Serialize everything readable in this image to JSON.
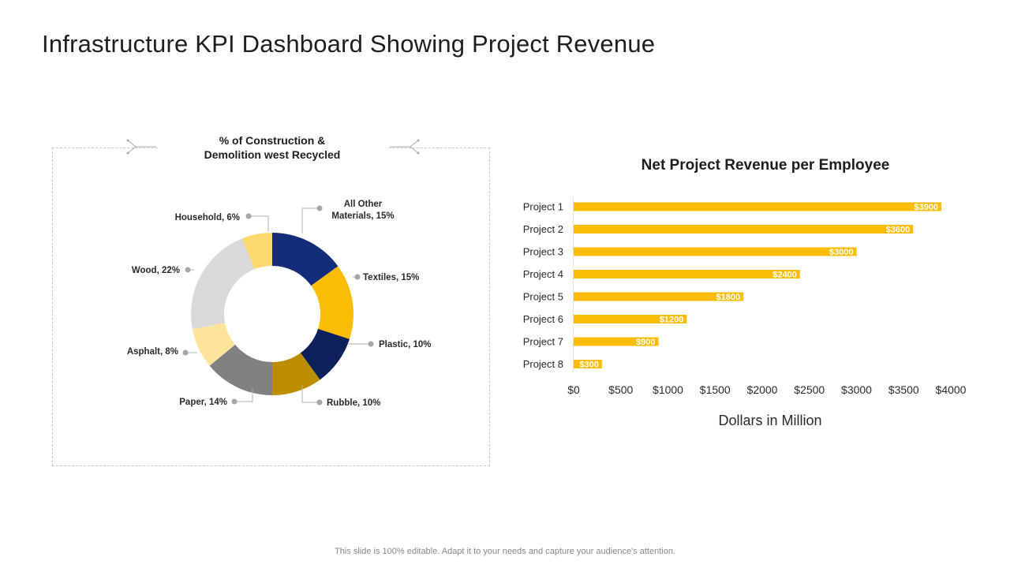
{
  "title": "Infrastructure KPI Dashboard Showing Project Revenue",
  "footer": "This slide is 100% editable. Adapt it to your needs and capture your audience's attention.",
  "chart_data": [
    {
      "type": "pie",
      "title": "% of Construction & Demolition west Recycled",
      "title_lines": [
        "% of Construction &",
        "Demolition west Recycled"
      ],
      "slices": [
        {
          "label": "All Other Materials, 15%",
          "label_lines": [
            "All Other",
            "Materials, 15%"
          ],
          "value": 15,
          "color": "#132d7a"
        },
        {
          "label": "Textiles, 15%",
          "label_lines": [
            "Textiles, 15%"
          ],
          "value": 15,
          "color": "#fbbc05"
        },
        {
          "label": "Plastic, 10%",
          "label_lines": [
            "Plastic, 10%"
          ],
          "value": 10,
          "color": "#0e2059"
        },
        {
          "label": "Rubble, 10%",
          "label_lines": [
            "Rubble, 10%"
          ],
          "value": 10,
          "color": "#bd8d00"
        },
        {
          "label": "Paper, 14%",
          "label_lines": [
            "Paper, 14%"
          ],
          "value": 14,
          "color": "#808080"
        },
        {
          "label": "Asphalt, 8%",
          "label_lines": [
            "Asphalt, 8%"
          ],
          "value": 8,
          "color": "#fde49a"
        },
        {
          "label": "Wood, 22%",
          "label_lines": [
            "Wood, 22%"
          ],
          "value": 22,
          "color": "#d9d9d9"
        },
        {
          "label": "Household, 6%",
          "label_lines": [
            "Household, 6%"
          ],
          "value": 6,
          "color": "#fdd86e"
        }
      ]
    },
    {
      "type": "bar",
      "orientation": "horizontal",
      "title": "Net Project Revenue per Employee",
      "categories": [
        "Project 1",
        "Project 2",
        "Project 3",
        "Project 4",
        "Project 5",
        "Project 6",
        "Project 7",
        "Project 8"
      ],
      "values": [
        3900,
        3600,
        3000,
        2400,
        1800,
        1200,
        900,
        300
      ],
      "data_labels": [
        "$3900",
        "$3600",
        "$3000",
        "$2400",
        "$1800",
        "$1200",
        "$900",
        "$300"
      ],
      "xlim": [
        0,
        4000
      ],
      "xticks": [
        0,
        500,
        1000,
        1500,
        2000,
        2500,
        3000,
        3500,
        4000
      ],
      "xtick_labels": [
        "$0",
        "$500",
        "$1000",
        "$1500",
        "$2000",
        "$2500",
        "$3000",
        "$3500",
        "$4000"
      ],
      "xlabel": "Dollars in Million",
      "bar_color": "#fbbc05"
    }
  ]
}
